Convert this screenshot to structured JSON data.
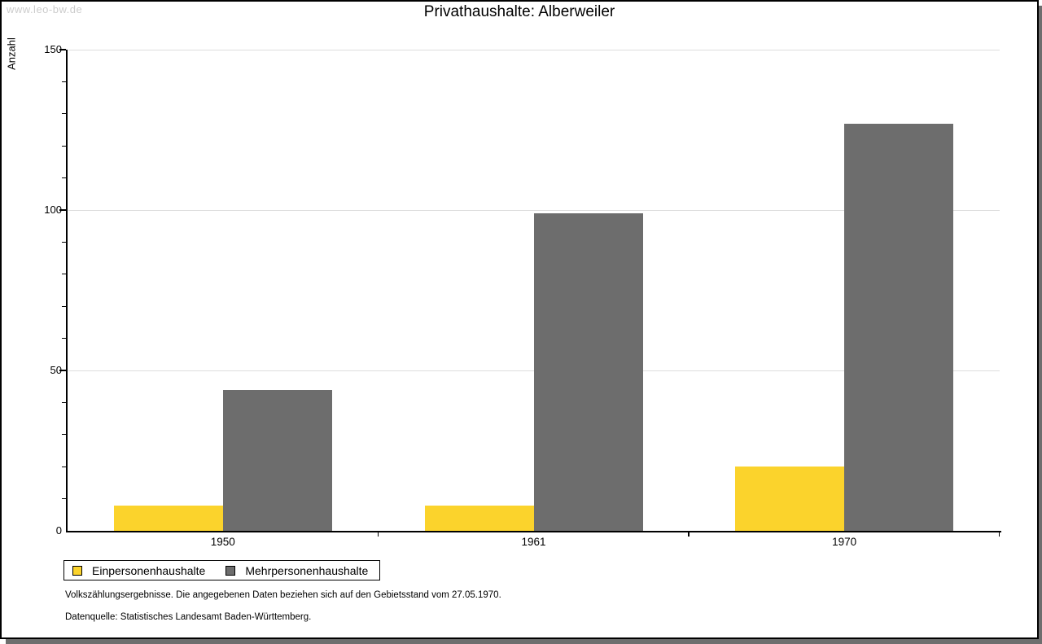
{
  "watermark": "www.leo-bw.de",
  "title": "Privathaushalte: Alberweiler",
  "chart_data": {
    "type": "bar",
    "title": "Privathaushalte: Alberweiler",
    "categories": [
      "1950",
      "1961",
      "1970"
    ],
    "series": [
      {
        "name": "Einpersonenhaushalte",
        "color": "#FBD32C",
        "values": [
          8,
          8,
          20
        ]
      },
      {
        "name": "Mehrpersonenhaushalte",
        "color": "#6D6D6D",
        "values": [
          44,
          99,
          127
        ]
      }
    ],
    "xlabel": "",
    "ylabel": "Anzahl",
    "ylim": [
      0,
      150
    ],
    "yticks": [
      0,
      50,
      100,
      150
    ],
    "minor_tick_step": 10,
    "grid": "horizontal",
    "gridline_color": "#dddddd",
    "legend_position": "bottom-left"
  },
  "footer": {
    "line1": "Volkszählungsergebnisse. Die angegebenen Daten beziehen sich auf den Gebietsstand vom 27.05.1970.",
    "line2": "Datenquelle: Statistisches Landesamt Baden-Württemberg."
  }
}
